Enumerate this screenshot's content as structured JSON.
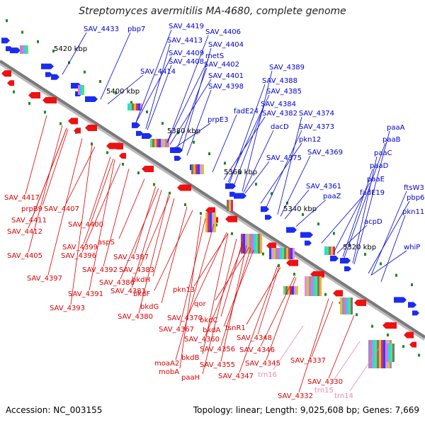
{
  "title": "Streptomyces avermitilis MA-4680, complete genome",
  "footer": {
    "accession": "Accession: NC_003155",
    "stats": "Topology: linear; Length: 9,025,608 bp; Genes: 7,669"
  },
  "colors": {
    "backbone": "#7a7a7a",
    "forward_label": "#0000cc",
    "reverse_label": "#dd0000",
    "trna_label": "#ee88aa",
    "forward_gene": "#1a2cf0",
    "reverse_gene": "#ee1111",
    "tick": "#1a8a1a"
  },
  "scale_labels": [
    "5420 kbp",
    "5400 kbp",
    "5380 kbp",
    "5360 kbp",
    "5340 kbp",
    "5320 kbp"
  ],
  "forward_labels": [
    "SAV_4433",
    "pbp7",
    "SAV_4419",
    "SAV_4406",
    "SAV_4413",
    "SAV_4404",
    "SAV_4409",
    "metS",
    "SAV_4408",
    "SAV_4402",
    "SAV_4414",
    "SAV_4401",
    "SAV_4398",
    "SAV_4389",
    "SAV_4388",
    "SAV_4385",
    "fadE24",
    "SAV_4384",
    "prpE3",
    "SAV_4382",
    "SAV_4374",
    "dacD",
    "SAV_4373",
    "pkn12",
    "SAV_4375",
    "SAV_4369",
    "paaA",
    "paaB",
    "paaC",
    "paaD",
    "paaE",
    "fadE19",
    "SAV_4361",
    "paaZ",
    "ftsW3",
    "pbp6",
    "pkn11",
    "acpD",
    "whiP"
  ],
  "reverse_labels": [
    "SAV_4417",
    "prpB9",
    "SAV_4407",
    "SAV_4411",
    "SAV_4412",
    "SAV_4400",
    "aspS",
    "SAV_4399",
    "SAV_4405",
    "SAV_4396",
    "SAV_4387",
    "SAV_4392",
    "SAV_4383",
    "SAV_4397",
    "SAV_4386",
    "bkdH",
    "SAV_4391",
    "SAV_4381",
    "pkn13",
    "bkdF",
    "SAV_4393",
    "bkdG",
    "SAV_4380",
    "qor",
    "SAV_4370",
    "bkdC",
    "SAV_4367",
    "bkdA",
    "tsnR1",
    "SAV_4360",
    "SAV_4348",
    "bkdB",
    "SAV_4356",
    "SAV_4346",
    "moaA2",
    "mobA",
    "SAV_4355",
    "SAV_4345",
    "paaH",
    "SAV_4347",
    "SAV_4337",
    "SAV_4330",
    "SAV_4332"
  ],
  "trna_labels": [
    "trn16",
    "trn15",
    "trn14"
  ]
}
